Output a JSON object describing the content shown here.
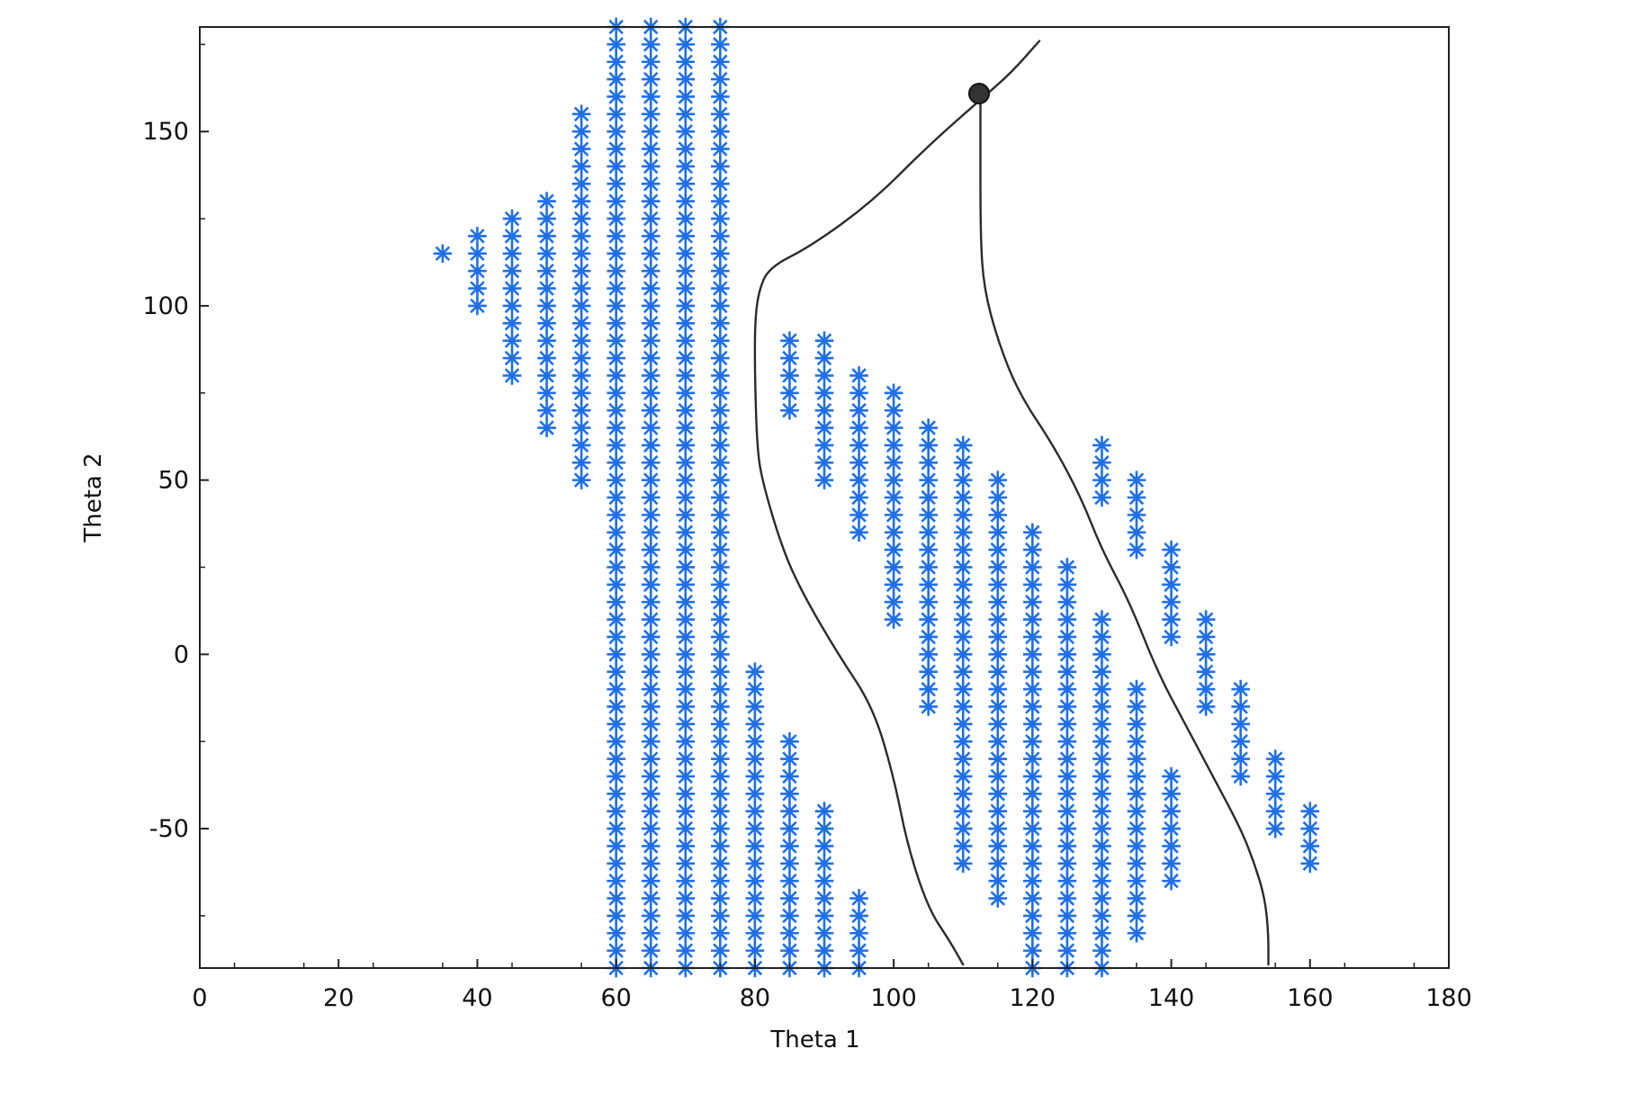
{
  "chart_data": {
    "type": "scatter",
    "title": "",
    "xlabel": "Theta 1",
    "ylabel": "Theta 2",
    "xlim": [
      0,
      180
    ],
    "ylim": [
      -90,
      180
    ],
    "x_ticks": [
      "0",
      "20",
      "40",
      "60",
      "80",
      "100",
      "120",
      "140",
      "160",
      "180"
    ],
    "y_ticks": [
      "-50",
      "0",
      "50",
      "100",
      "150"
    ],
    "grid": false,
    "legend": "none",
    "marker": "asterisk",
    "marker_color": "#1f6fe8",
    "y_step": 5,
    "columns": [
      {
        "x": 35,
        "y_min": 115,
        "y_max": 115
      },
      {
        "x": 40,
        "y_min": 100,
        "y_max": 120
      },
      {
        "x": 45,
        "y_min": 80,
        "y_max": 125
      },
      {
        "x": 50,
        "y_min": 65,
        "y_max": 130
      },
      {
        "x": 55,
        "y_min": 50,
        "y_max": 155
      },
      {
        "x": 60,
        "y_min": -90,
        "y_max": 180
      },
      {
        "x": 65,
        "y_min": -90,
        "y_max": 180
      },
      {
        "x": 70,
        "y_min": -90,
        "y_max": 180
      },
      {
        "x": 75,
        "y_min": -90,
        "y_max": 180
      },
      {
        "x": 80,
        "y_min": -90,
        "y_max": -5
      },
      {
        "x": 85,
        "y_min": 70,
        "y_max": 90
      },
      {
        "x": 85,
        "y_min": -90,
        "y_max": -25
      },
      {
        "x": 90,
        "y_min": 50,
        "y_max": 90
      },
      {
        "x": 90,
        "y_min": -90,
        "y_max": -45
      },
      {
        "x": 95,
        "y_min": 35,
        "y_max": 80
      },
      {
        "x": 95,
        "y_min": -90,
        "y_max": -70
      },
      {
        "x": 100,
        "y_min": 10,
        "y_max": 75
      },
      {
        "x": 105,
        "y_min": -15,
        "y_max": 65
      },
      {
        "x": 110,
        "y_min": -60,
        "y_max": 60
      },
      {
        "x": 115,
        "y_min": -70,
        "y_max": 50
      },
      {
        "x": 120,
        "y_min": -90,
        "y_max": 35
      },
      {
        "x": 125,
        "y_min": -90,
        "y_max": 25
      },
      {
        "x": 130,
        "y_min": 45,
        "y_max": 60
      },
      {
        "x": 130,
        "y_min": -90,
        "y_max": 10
      },
      {
        "x": 135,
        "y_min": 30,
        "y_max": 50
      },
      {
        "x": 135,
        "y_min": -80,
        "y_max": -10
      },
      {
        "x": 140,
        "y_min": 5,
        "y_max": 30
      },
      {
        "x": 140,
        "y_min": -65,
        "y_max": -35
      },
      {
        "x": 145,
        "y_min": -15,
        "y_max": 10
      },
      {
        "x": 150,
        "y_min": -35,
        "y_max": -10
      },
      {
        "x": 155,
        "y_min": -50,
        "y_max": -30
      },
      {
        "x": 160,
        "y_min": -60,
        "y_max": -45
      }
    ],
    "hand_drawn_curves": [
      {
        "points": [
          [
            121,
            176
          ],
          [
            117,
            167
          ],
          [
            113,
            160
          ],
          [
            105,
            146
          ],
          [
            97,
            130
          ],
          [
            88,
            117
          ],
          [
            82,
            111
          ],
          [
            80.5,
            104
          ],
          [
            80,
            95
          ],
          [
            80,
            80
          ],
          [
            80.3,
            60
          ],
          [
            81,
            50
          ],
          [
            84,
            30
          ],
          [
            87,
            17
          ],
          [
            92,
            0
          ],
          [
            97,
            -15
          ],
          [
            100,
            -35
          ],
          [
            102,
            -55
          ],
          [
            105,
            -73
          ],
          [
            108,
            -82
          ],
          [
            110,
            -89
          ]
        ]
      },
      {
        "points": [
          [
            112.5,
            160
          ],
          [
            112.5,
            150
          ],
          [
            112.5,
            120
          ],
          [
            113,
            105
          ],
          [
            115,
            90
          ],
          [
            118,
            75
          ],
          [
            123,
            60
          ],
          [
            127,
            45
          ],
          [
            130,
            30
          ],
          [
            134,
            15
          ],
          [
            138,
            -5
          ],
          [
            142,
            -20
          ],
          [
            146,
            -35
          ],
          [
            150,
            -50
          ],
          [
            152,
            -60
          ],
          [
            153.5,
            -70
          ],
          [
            154,
            -80
          ],
          [
            154,
            -89
          ]
        ]
      }
    ]
  }
}
